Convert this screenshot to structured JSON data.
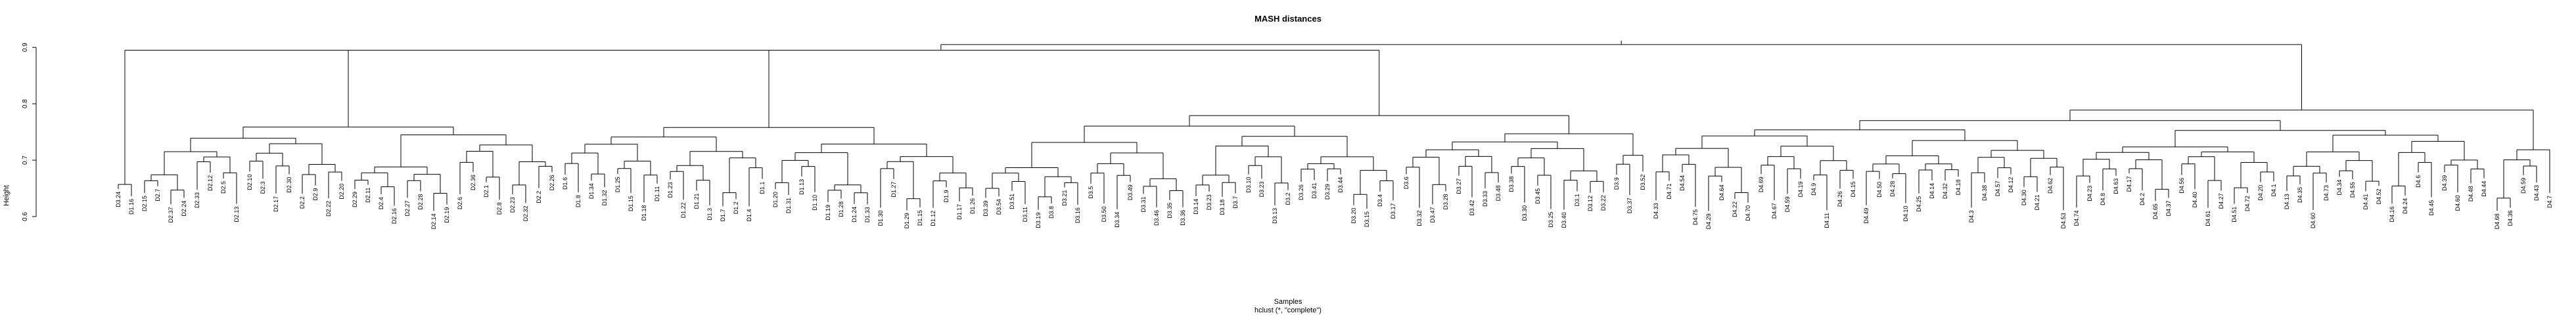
{
  "chart_data": {
    "type": "dendrogram",
    "title": "MASH distances",
    "xlabel": "Samples",
    "sublabel": "hclust (*, \"complete\")",
    "ylabel": "Height",
    "ylim": [
      0.6,
      0.92
    ],
    "yticks": [
      0.6,
      0.7,
      0.8,
      0.9
    ],
    "ytick_labels": [
      "0.6",
      "0.7",
      "0.8",
      "0.9"
    ],
    "root_height": 0.912,
    "clusters": [
      {
        "height": 0.895,
        "leaves": [
          "D3.24",
          "D1.16"
        ],
        "sub_heights": [
          0.7,
          0.66,
          0.74,
          0.76,
          0.79,
          0.68,
          0.71,
          0.73,
          0.75,
          0.72,
          0.77
        ]
      },
      {
        "labels_left": [
          "D2.15",
          "D2.7",
          "D2.37",
          "D2.24",
          "D2.33",
          "D2.12",
          "D2.5",
          "D2.13",
          "D2.10",
          "D2.3",
          "D2.17",
          "D2.30",
          "D2.2",
          "D2.9",
          "D2.22",
          "D2.20",
          "D2.29",
          "D2.11",
          "D2.4",
          "D2.16",
          "D2.27",
          "D2.28",
          "D2.14",
          "D2.19",
          "D2.6",
          "D2.36",
          "D2.1",
          "D2.8",
          "D2.23",
          "D2.32",
          "D2.2",
          "D2.26"
        ]
      },
      {
        "labels": [
          "D1.6",
          "D1.8",
          "D1.34",
          "D1.32",
          "D1.25",
          "D1.15",
          "D1.18",
          "D1.11",
          "D1.23",
          "D1.22",
          "D1.21",
          "D1.3",
          "D1.7",
          "D1.2",
          "D1.4",
          "D1.1",
          "D1.20",
          "D1.31",
          "D1.13",
          "D1.10",
          "D1.19",
          "D1.28",
          "D1.24",
          "D1.33",
          "D1.30",
          "D1.27",
          "D1.29",
          "D1.15",
          "D1.12",
          "D1.9",
          "D1.17",
          "D1.26"
        ]
      },
      {
        "labels": [
          "D3.39",
          "D3.54",
          "D3.51",
          "D3.11",
          "D3.19",
          "D3.8",
          "D3.21",
          "D3.16",
          "D3.5",
          "D3.50",
          "D3.34",
          "D3.49",
          "D3.31",
          "D3.46",
          "D3.35",
          "D3.36",
          "D3.14",
          "D3.23",
          "D3.18",
          "D3.7",
          "D3.10",
          "D3.23",
          "D3.13",
          "D3.2",
          "D3.26",
          "D3.41",
          "D3.29",
          "D3.44",
          "D3.20",
          "D3.15",
          "D3.4",
          "D3.17",
          "D3.6",
          "D3.32",
          "D3.47",
          "D3.28",
          "D3.27",
          "D3.42",
          "D3.33",
          "D3.48",
          "D3.38",
          "D3.30",
          "D3.45",
          "D3.25",
          "D3.40",
          "D3.1",
          "D3.12",
          "D3.22",
          "D3.9",
          "D3.37",
          "D3.52"
        ]
      },
      {
        "labels": [
          "D4.33",
          "D4.71",
          "D4.54",
          "D4.75",
          "D4.29",
          "D4.64",
          "D4.22",
          "D4.70",
          "D4.69",
          "D4.67",
          "D4.59",
          "D4.19",
          "D4.9",
          "D4.11",
          "D4.26",
          "D4.15",
          "D4.49",
          "D4.50",
          "D4.28",
          "D4.10",
          "D4.25",
          "D4.14",
          "D4.32",
          "D4.18",
          "D4.3",
          "D4.38",
          "D4.57",
          "D4.12",
          "D4.30",
          "D4.21",
          "D4.62",
          "D4.53",
          "D4.74",
          "D4.23",
          "D4.8",
          "D4.63",
          "D4.17",
          "D4.2",
          "D4.65",
          "D4.37",
          "D4.56",
          "D4.40",
          "D4.61",
          "D4.27",
          "D4.51",
          "D4.72",
          "D4.20",
          "D4.1",
          "D4.13",
          "D4.35",
          "D4.60",
          "D4.73",
          "D4.34",
          "D4.55",
          "D4.41",
          "D4.52",
          "D4.16",
          "D4.24",
          "D4.6",
          "D4.45",
          "D4.39",
          "D4.60",
          "D4.48",
          "D4.44",
          "D4.68",
          "D4.36",
          "D4.59",
          "D4.43",
          "D4.7"
        ]
      }
    ]
  }
}
